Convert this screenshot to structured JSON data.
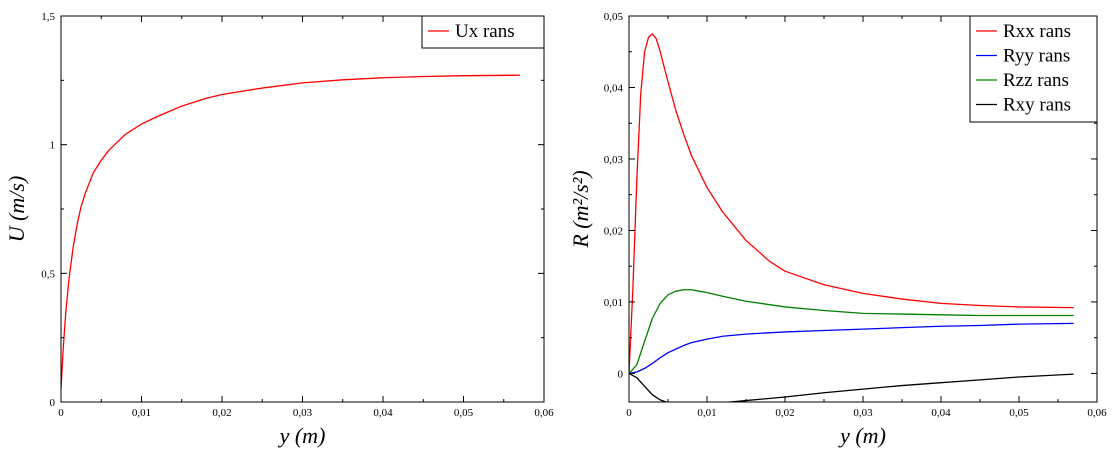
{
  "chart_data": [
    {
      "type": "line",
      "xlabel": "y (m)",
      "ylabel": "U (m/s)",
      "xlim": [
        0,
        0.06
      ],
      "ylim": [
        0,
        1.5
      ],
      "xticks": [
        "0",
        "0,01",
        "0,02",
        "0,03",
        "0,04",
        "0,05",
        "0,06"
      ],
      "yticks": [
        "0",
        "0,5",
        "1",
        "1,5"
      ],
      "legend": "top-right",
      "grid": false,
      "series": [
        {
          "name": "Ux rans",
          "color": "#ff0000",
          "x": [
            0,
            0.0003,
            0.0006,
            0.001,
            0.0015,
            0.002,
            0.0025,
            0.003,
            0.004,
            0.005,
            0.006,
            0.007,
            0.008,
            0.01,
            0.012,
            0.015,
            0.018,
            0.02,
            0.025,
            0.03,
            0.035,
            0.04,
            0.045,
            0.05,
            0.057
          ],
          "y": [
            0.05,
            0.22,
            0.35,
            0.48,
            0.6,
            0.69,
            0.76,
            0.81,
            0.89,
            0.94,
            0.98,
            1.01,
            1.04,
            1.08,
            1.11,
            1.15,
            1.18,
            1.195,
            1.22,
            1.24,
            1.252,
            1.26,
            1.265,
            1.268,
            1.27
          ]
        }
      ]
    },
    {
      "type": "line",
      "xlabel": "y (m)",
      "ylabel": "R (m²/s²)",
      "xlim": [
        0,
        0.06
      ],
      "ylim": [
        -0.004,
        0.05
      ],
      "xticks": [
        "0",
        "0,01",
        "0,02",
        "0,03",
        "0,04",
        "0,05",
        "0,06"
      ],
      "yticks": [
        "0",
        "0,01",
        "0,02",
        "0,03",
        "0,04",
        "0,05"
      ],
      "legend": "top-right",
      "grid": false,
      "series": [
        {
          "name": "Rxx rans",
          "color": "#ff0000",
          "x": [
            0,
            0.0005,
            0.001,
            0.0015,
            0.002,
            0.0025,
            0.003,
            0.0035,
            0.004,
            0.005,
            0.006,
            0.007,
            0.008,
            0.01,
            0.012,
            0.015,
            0.018,
            0.02,
            0.025,
            0.03,
            0.035,
            0.04,
            0.045,
            0.05,
            0.057
          ],
          "y": [
            0,
            0.012,
            0.027,
            0.039,
            0.045,
            0.047,
            0.0475,
            0.0468,
            0.045,
            0.0408,
            0.0368,
            0.0335,
            0.0305,
            0.026,
            0.0226,
            0.0186,
            0.0157,
            0.0143,
            0.0124,
            0.0112,
            0.0104,
            0.0098,
            0.0095,
            0.0093,
            0.0092
          ]
        },
        {
          "name": "Ryy rans",
          "color": "#0000ff",
          "x": [
            0,
            0.001,
            0.002,
            0.003,
            0.004,
            0.005,
            0.006,
            0.007,
            0.008,
            0.01,
            0.012,
            0.015,
            0.02,
            0.025,
            0.03,
            0.035,
            0.04,
            0.045,
            0.05,
            0.057
          ],
          "y": [
            0,
            0.0002,
            0.0007,
            0.0014,
            0.0022,
            0.0029,
            0.0034,
            0.0039,
            0.0043,
            0.0048,
            0.0052,
            0.0055,
            0.0058,
            0.006,
            0.0062,
            0.0064,
            0.0066,
            0.0067,
            0.0069,
            0.007
          ]
        },
        {
          "name": "Rzz rans",
          "color": "#008000",
          "x": [
            0,
            0.001,
            0.002,
            0.003,
            0.004,
            0.005,
            0.006,
            0.007,
            0.008,
            0.009,
            0.01,
            0.012,
            0.015,
            0.02,
            0.025,
            0.03,
            0.035,
            0.04,
            0.045,
            0.05,
            0.057
          ],
          "y": [
            0,
            0.0012,
            0.0045,
            0.0077,
            0.0098,
            0.011,
            0.0115,
            0.0117,
            0.0117,
            0.0115,
            0.0113,
            0.0108,
            0.0101,
            0.0093,
            0.0088,
            0.0084,
            0.0083,
            0.0082,
            0.0081,
            0.0081,
            0.0081
          ]
        },
        {
          "name": "Rxy rans",
          "color": "#000000",
          "x": [
            0,
            0.001,
            0.002,
            0.003,
            0.004,
            0.005,
            0.006,
            0.007,
            0.008,
            0.01,
            0.012,
            0.015,
            0.02,
            0.025,
            0.03,
            0.035,
            0.04,
            0.045,
            0.05,
            0.057
          ],
          "y": [
            0,
            -0.0006,
            -0.0018,
            -0.003,
            -0.0037,
            -0.0041,
            -0.0043,
            -0.0044,
            -0.0044,
            -0.0043,
            -0.0041,
            -0.0038,
            -0.0033,
            -0.0027,
            -0.0022,
            -0.0017,
            -0.0013,
            -0.0009,
            -0.0005,
            -0.0001
          ]
        }
      ]
    }
  ]
}
